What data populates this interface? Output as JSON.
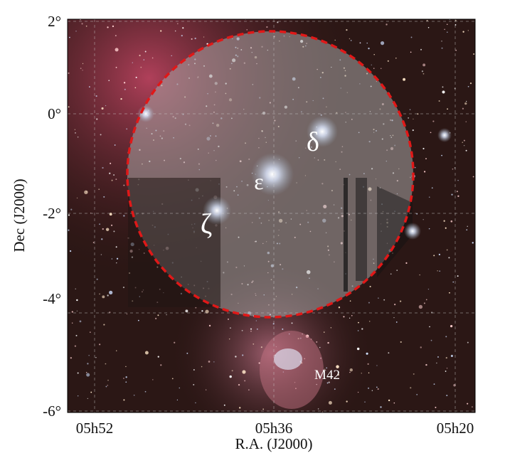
{
  "axes": {
    "x": {
      "label": "R.A. (J2000)",
      "ticks": [
        "05h52",
        "05h36",
        "05h20"
      ]
    },
    "y": {
      "label": "Dec (J2000)",
      "ticks": [
        "2°",
        "0°",
        "-2°",
        "-4°",
        "-6°"
      ]
    }
  },
  "annotations": [
    "δ",
    "ε",
    "ζ",
    "M42"
  ]
}
